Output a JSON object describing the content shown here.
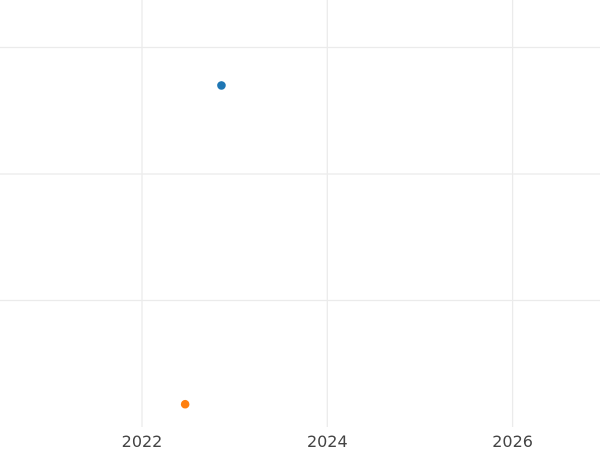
{
  "chart_data": {
    "type": "scatter",
    "title": "",
    "xlabel": "",
    "ylabel": "",
    "x_axis": {
      "type": "date",
      "range": [
        "2020-06-21",
        "2026-12-20"
      ],
      "ticks": [
        "2022",
        "2024",
        "2026"
      ],
      "tick_values": [
        2022,
        2024,
        2026
      ]
    },
    "y_axis": {
      "range": [
        -0.0,
        3.37
      ],
      "tick_values": [
        1,
        2,
        3
      ],
      "tick_labels": [
        "",
        "",
        ""
      ]
    },
    "grid": true,
    "legend": "none",
    "series": [
      {
        "color": "#1f77b4",
        "points": [
          {
            "x": "2022-11-10",
            "y": 2.7
          }
        ]
      },
      {
        "color": "#ff7f0e",
        "points": [
          {
            "x": "2022-06-20",
            "y": 0.18
          }
        ]
      }
    ]
  }
}
